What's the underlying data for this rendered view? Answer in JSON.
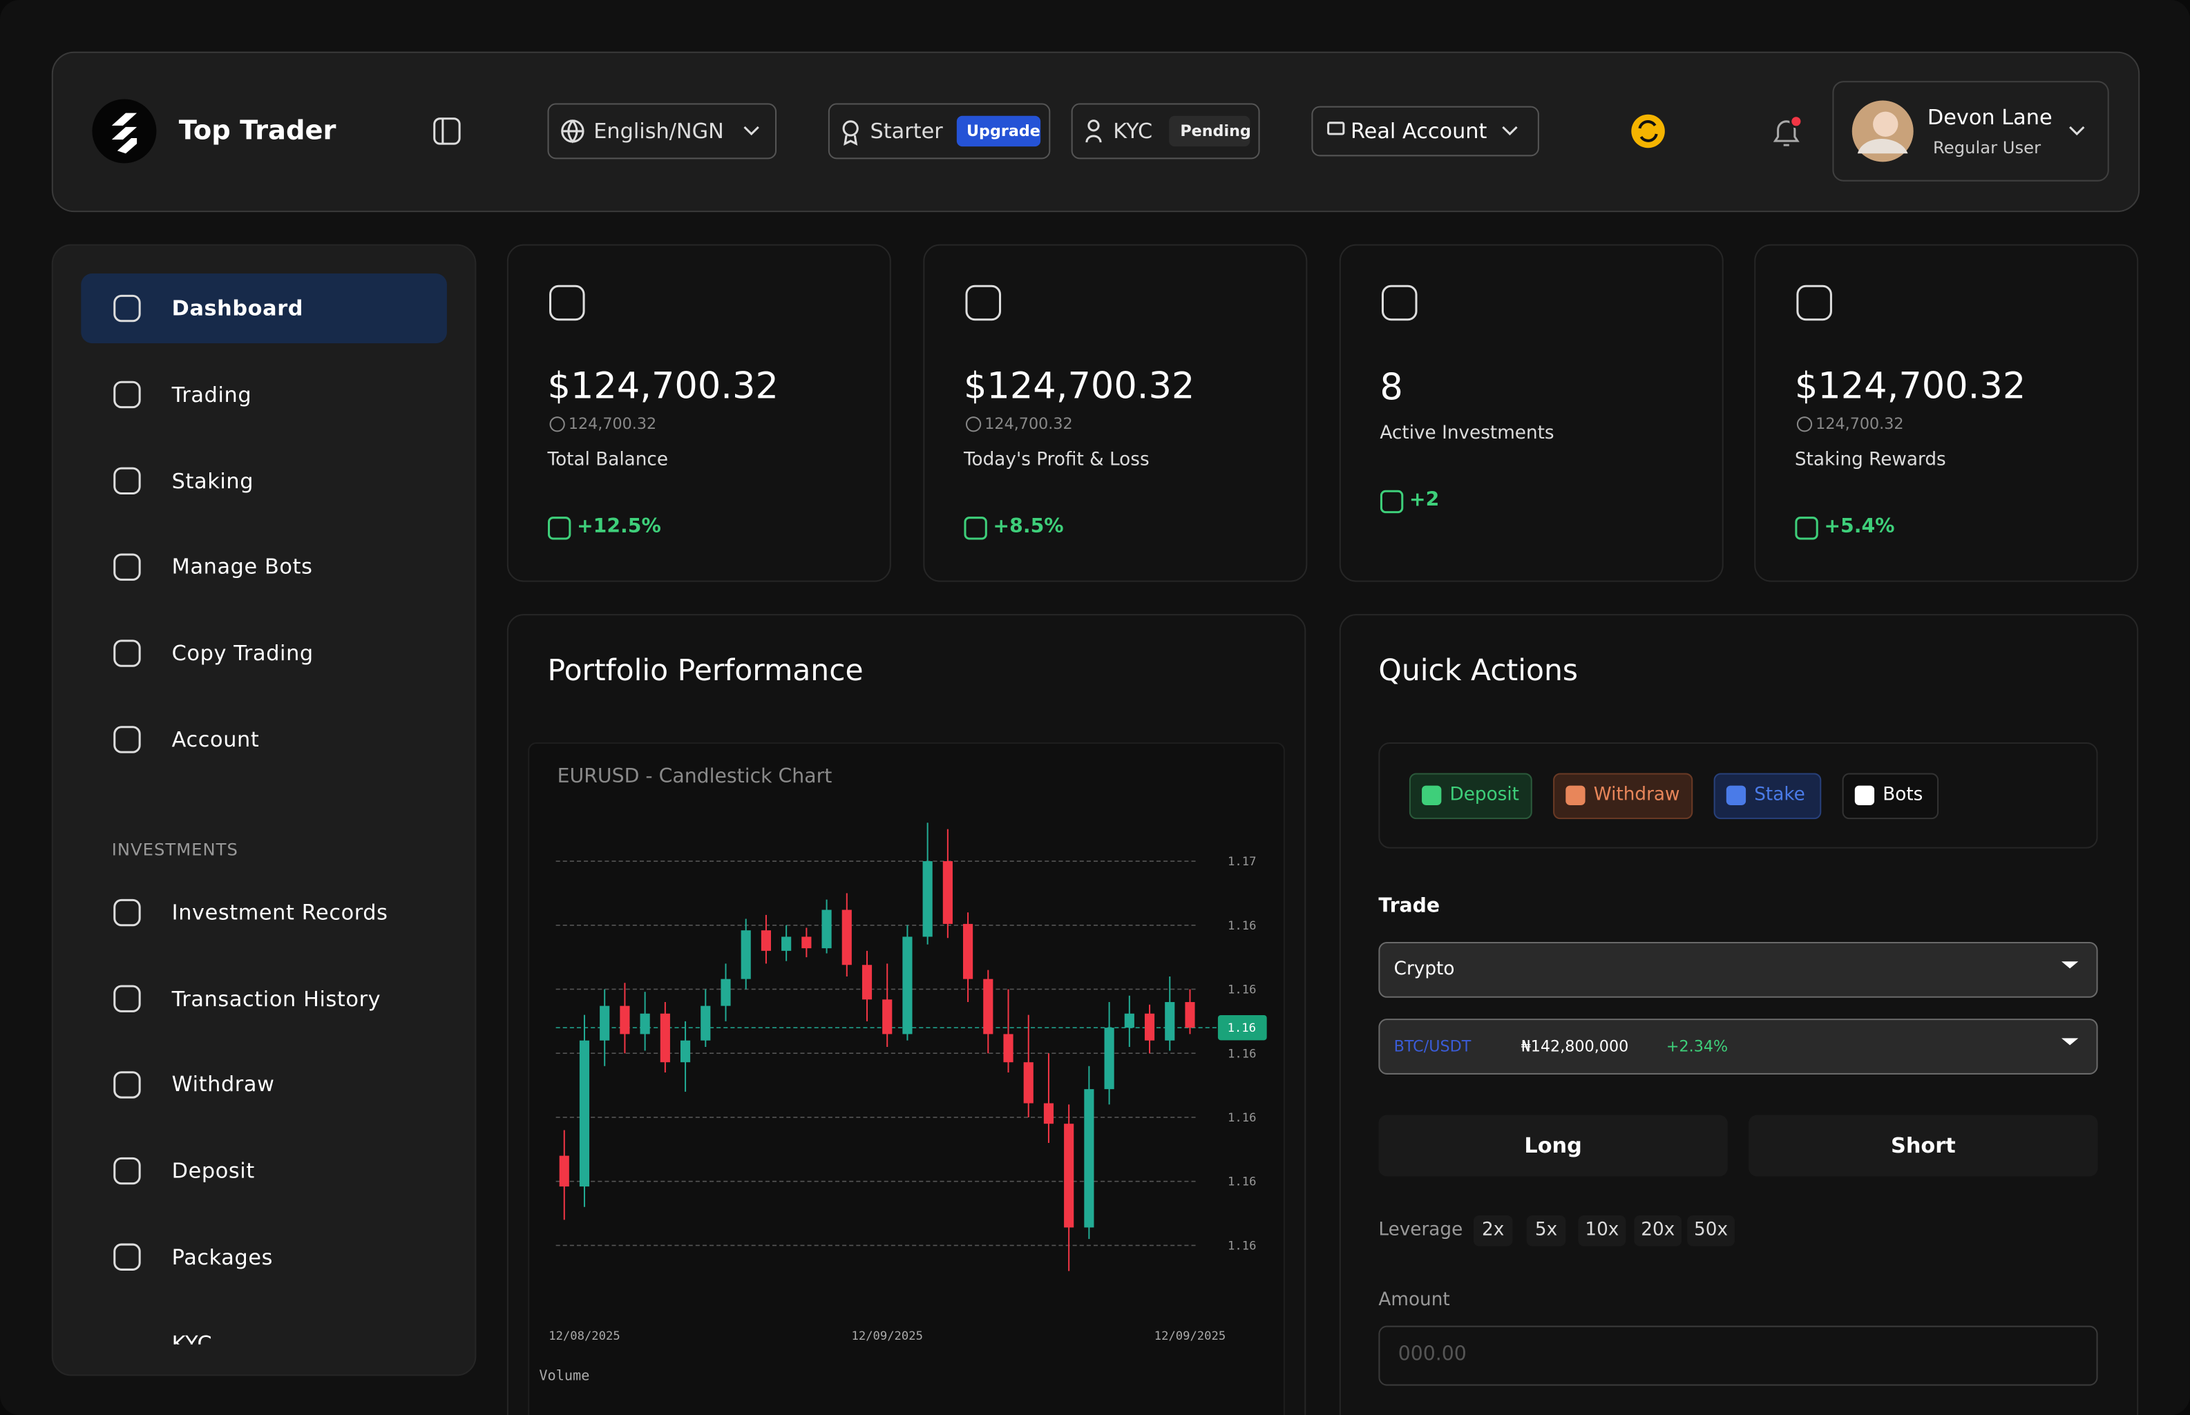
{
  "header": {
    "brand": "Top Trader",
    "language": "English/NGN",
    "plan": "Starter",
    "upgrade": "Upgrade",
    "kyc": "KYC",
    "kyc_status": "Pending",
    "account": "Real Account",
    "user_name": "Devon Lane",
    "user_role": "Regular User"
  },
  "sidebar": {
    "items": [
      "Dashboard",
      "Trading",
      "Staking",
      "Manage Bots",
      "Copy Trading",
      "Account"
    ],
    "section": "INVESTMENTS",
    "investment_items": [
      "Investment Records",
      "Transaction History",
      "Withdraw",
      "Deposit",
      "Packages",
      "KYC"
    ]
  },
  "stats": [
    {
      "value": "$124,700.32",
      "sub": "124,700.32",
      "label": "Total Balance",
      "change": "+12.5%"
    },
    {
      "value": "$124,700.32",
      "sub": "124,700.32",
      "label": "Today's Profit & Loss",
      "change": "+8.5%"
    },
    {
      "value": "8",
      "label": "Active Investments",
      "change": "+2"
    },
    {
      "value": "$124,700.32",
      "sub": "124,700.32",
      "label": "Staking Rewards",
      "change": "+5.4%"
    }
  ],
  "portfolio": {
    "title": "Portfolio Performance"
  },
  "chart_data": {
    "type": "candlestick",
    "title": "EURUSD - Candlestick Chart",
    "x": [
      null,
      "12/08/2025",
      null,
      null,
      null,
      null,
      null,
      null,
      null,
      null,
      null,
      null,
      null,
      null,
      null,
      null,
      "12/09/2025",
      null,
      null,
      null,
      null,
      null,
      null,
      null,
      null,
      null,
      null,
      null,
      null,
      null,
      null,
      "12/09/2025"
    ],
    "open": [
      1.1629,
      1.16266,
      1.1638,
      1.16407,
      1.16385,
      1.16401,
      1.16363,
      1.1638,
      1.16407,
      1.16428,
      1.16466,
      1.1645,
      1.16461,
      1.16452,
      1.16482,
      1.16439,
      1.16412,
      1.16385,
      1.16461,
      1.1652,
      1.16471,
      1.16428,
      1.16385,
      1.16363,
      1.16331,
      1.16315,
      1.16234,
      1.16342,
      1.1639,
      1.16401,
      1.1638,
      1.1641
    ],
    "high": [
      1.1631,
      1.164,
      1.1642,
      1.16425,
      1.16418,
      1.1641,
      1.16395,
      1.1642,
      1.1644,
      1.16475,
      1.16478,
      1.1647,
      1.16468,
      1.1649,
      1.16495,
      1.1645,
      1.1644,
      1.1647,
      1.1655,
      1.16545,
      1.1648,
      1.16435,
      1.1642,
      1.164,
      1.1637,
      1.1633,
      1.1636,
      1.1641,
      1.16415,
      1.16408,
      1.1643,
      1.1642
    ],
    "low": [
      1.1624,
      1.1625,
      1.1636,
      1.1637,
      1.16372,
      1.16355,
      1.1634,
      1.16375,
      1.16395,
      1.1642,
      1.1644,
      1.16442,
      1.16445,
      1.16448,
      1.1643,
      1.16395,
      1.16375,
      1.1638,
      1.16455,
      1.1646,
      1.1641,
      1.1637,
      1.16355,
      1.1632,
      1.163,
      1.162,
      1.16225,
      1.1633,
      1.16375,
      1.1637,
      1.16372,
      1.16385
    ],
    "close": [
      1.16266,
      1.1638,
      1.16407,
      1.16385,
      1.16401,
      1.16363,
      1.1638,
      1.16407,
      1.16428,
      1.16466,
      1.1645,
      1.16461,
      1.16452,
      1.16482,
      1.16439,
      1.16412,
      1.16385,
      1.16461,
      1.1652,
      1.16471,
      1.16428,
      1.16385,
      1.16363,
      1.16331,
      1.16315,
      1.16234,
      1.16342,
      1.1639,
      1.16401,
      1.1638,
      1.1641,
      1.1639
    ],
    "up_color": "#22ab94",
    "down_color": "#f23645",
    "grid": true,
    "ylim": [
      1.1619,
      1.16555
    ],
    "yticks": [
      {
        "value": 1.1652,
        "label": "1.17"
      },
      {
        "value": 1.1647,
        "label": "1.16"
      },
      {
        "value": 1.1642,
        "label": "1.16"
      },
      {
        "value": 1.1637,
        "label": "1.16"
      },
      {
        "value": 1.1632,
        "label": "1.16"
      },
      {
        "value": 1.1627,
        "label": "1.16"
      },
      {
        "value": 1.1622,
        "label": "1.16"
      }
    ],
    "last_price": {
      "value": 1.1639,
      "label": "1.16"
    },
    "volume_label": "Volume"
  },
  "quick_actions": {
    "title": "Quick Actions",
    "buttons": [
      "Deposit",
      "Withdraw",
      "Stake",
      "Bots"
    ],
    "trade_label": "Trade",
    "market": "Crypto",
    "pair": "BTC/USDT",
    "price": "₦142,800,000",
    "change": "+2.34%",
    "long": "Long",
    "short": "Short",
    "leverage_label": "Leverage",
    "leverage": [
      "2x",
      "5x",
      "10x",
      "20x",
      "50x"
    ],
    "amount_label": "Amount",
    "amount_placeholder": "000.00"
  }
}
